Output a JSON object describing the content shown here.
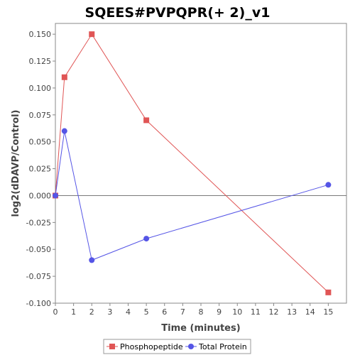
{
  "chart_data": {
    "type": "line",
    "title": "SQEES#PVPQPR(+ 2)_v1",
    "xlabel": "Time (minutes)",
    "ylabel": "log2(dDAVP/Control)",
    "xlim": [
      0,
      16
    ],
    "ylim": [
      -0.1,
      0.16
    ],
    "x_ticks": [
      0,
      1,
      2,
      3,
      4,
      5,
      6,
      7,
      8,
      9,
      10,
      11,
      12,
      13,
      14,
      15
    ],
    "x_tick_labels": [
      "0",
      "1",
      "2",
      "3",
      "4",
      "5",
      "6",
      "7",
      "8",
      "9",
      "10",
      "11",
      "12",
      "13",
      "14",
      "15"
    ],
    "y_ticks": [
      -0.1,
      -0.075,
      -0.05,
      -0.025,
      0,
      0.025,
      0.05,
      0.075,
      0.1,
      0.125,
      0.15
    ],
    "y_tick_labels": [
      "-0.100",
      "-0.075",
      "-0.050",
      "-0.025",
      "0.000",
      "0.025",
      "0.050",
      "0.075",
      "0.100",
      "0.125",
      "0.150"
    ],
    "zero_line": true,
    "grid": false,
    "legend_position": "bottom",
    "series": [
      {
        "name": "Phosphopeptide",
        "color": "#e05555",
        "marker": "square",
        "x": [
          0,
          0.5,
          2,
          5,
          15
        ],
        "y": [
          0.0,
          0.11,
          0.15,
          0.07,
          -0.09
        ]
      },
      {
        "name": "Total Protein",
        "color": "#5555e6",
        "marker": "circle",
        "x": [
          0,
          0.5,
          2,
          5,
          15
        ],
        "y": [
          0.0,
          0.06,
          -0.06,
          -0.04,
          0.01
        ]
      }
    ]
  }
}
